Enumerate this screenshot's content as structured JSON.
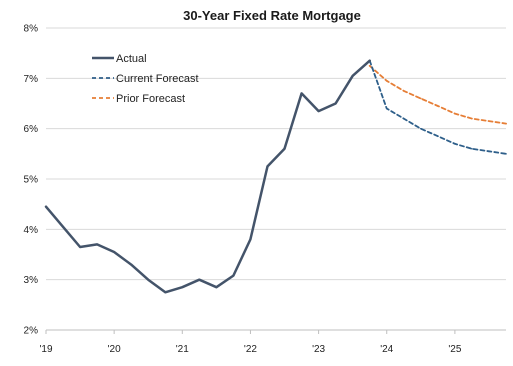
{
  "chart_data": {
    "type": "line",
    "title": "30-Year Fixed Rate Mortgage",
    "xlabel": "",
    "ylabel": "",
    "ylim": [
      2,
      8
    ],
    "xlim": [
      2019.0,
      2025.75
    ],
    "grid": "horizontal",
    "legend_position": "top-left",
    "y_ticks": [
      {
        "value": 2,
        "label": "2%"
      },
      {
        "value": 3,
        "label": "3%"
      },
      {
        "value": 4,
        "label": "4%"
      },
      {
        "value": 5,
        "label": "5%"
      },
      {
        "value": 6,
        "label": "6%"
      },
      {
        "value": 7,
        "label": "7%"
      },
      {
        "value": 8,
        "label": "8%"
      }
    ],
    "x_ticks": [
      {
        "value": 2019,
        "label": "'19"
      },
      {
        "value": 2020,
        "label": "'20"
      },
      {
        "value": 2021,
        "label": "'21"
      },
      {
        "value": 2022,
        "label": "'22"
      },
      {
        "value": 2023,
        "label": "'23"
      },
      {
        "value": 2024,
        "label": "'24"
      },
      {
        "value": 2025,
        "label": "'25"
      }
    ],
    "series": [
      {
        "name": "Actual",
        "color": "#44546a",
        "dash": "solid",
        "x": [
          2019.0,
          2019.25,
          2019.5,
          2019.75,
          2020.0,
          2020.25,
          2020.5,
          2020.75,
          2021.0,
          2021.25,
          2021.5,
          2021.75,
          2022.0,
          2022.25,
          2022.5,
          2022.75,
          2023.0,
          2023.25,
          2023.5,
          2023.75
        ],
        "y": [
          4.45,
          4.05,
          3.65,
          3.7,
          3.55,
          3.3,
          3.0,
          2.75,
          2.85,
          3.0,
          2.85,
          3.08,
          3.8,
          5.25,
          5.6,
          6.7,
          6.35,
          6.5,
          7.05,
          7.35
        ]
      },
      {
        "name": "Current Forecast",
        "color": "#2e5f8a",
        "dash": "dashed",
        "x": [
          2023.75,
          2024.0,
          2024.25,
          2024.5,
          2024.75,
          2025.0,
          2025.25,
          2025.5,
          2025.75
        ],
        "y": [
          7.35,
          6.4,
          6.2,
          6.0,
          5.85,
          5.7,
          5.6,
          5.55,
          5.5
        ]
      },
      {
        "name": "Prior Forecast",
        "color": "#e67e36",
        "dash": "dashed",
        "x": [
          2023.75,
          2024.0,
          2024.25,
          2024.5,
          2024.75,
          2025.0,
          2025.25,
          2025.5,
          2025.75
        ],
        "y": [
          7.25,
          6.95,
          6.75,
          6.6,
          6.45,
          6.3,
          6.2,
          6.15,
          6.1
        ]
      }
    ]
  }
}
